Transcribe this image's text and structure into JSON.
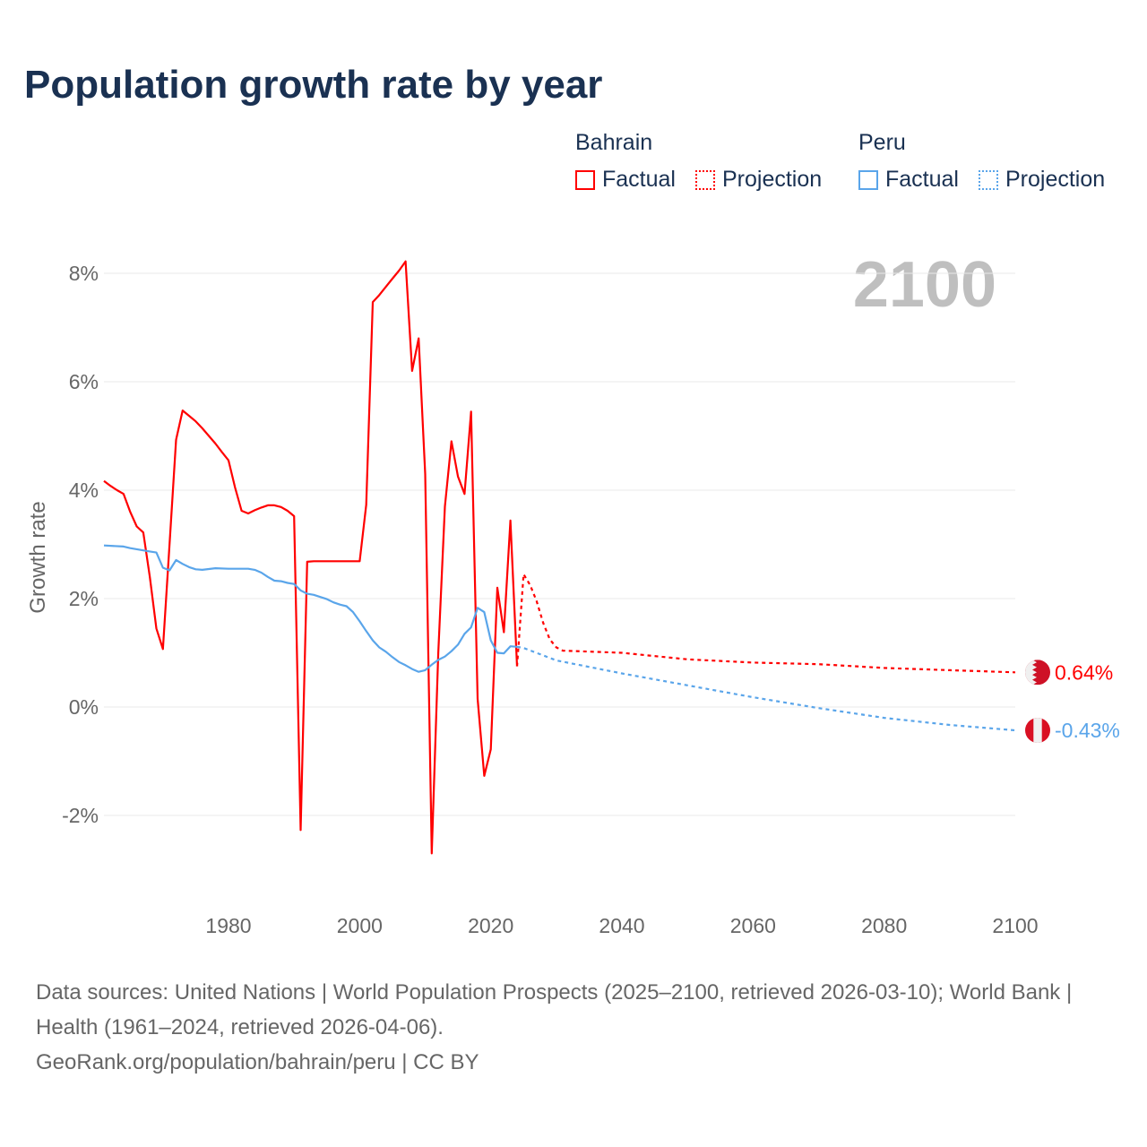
{
  "title": "Population growth rate by year",
  "legend": {
    "groups": [
      {
        "name": "Bahrain",
        "color": "#ff0000",
        "items": [
          "Factual",
          "Projection"
        ]
      },
      {
        "name": "Peru",
        "color": "#5aa5ea",
        "items": [
          "Factual",
          "Projection"
        ]
      }
    ]
  },
  "year_label": "2100",
  "sources": [
    "Data sources: United Nations | World Population Prospects (2025–2100, retrieved 2026-03-10); World Bank | Health (1961–2024, retrieved 2026-04-06).",
    "GeoRank.org/population/bahrain/peru | CC BY"
  ],
  "chart_data": {
    "type": "line",
    "title": "Population growth rate by year",
    "xlabel": "",
    "ylabel": "Growth rate",
    "xlim": [
      1961,
      2100
    ],
    "ylim": [
      -3,
      9
    ],
    "xticks": [
      1980,
      2000,
      2020,
      2040,
      2060,
      2080,
      2100
    ],
    "yticks": [
      -2,
      0,
      2,
      4,
      6,
      8
    ],
    "ytick_labels": [
      "-2%",
      "0%",
      "2%",
      "4%",
      "6%",
      "8%"
    ],
    "grid": true,
    "series": [
      {
        "name": "Bahrain",
        "kind": "Factual",
        "color": "#ff0000",
        "end_label": "0.64%",
        "x": [
          1961,
          1962,
          1963,
          1964,
          1965,
          1966,
          1967,
          1968,
          1969,
          1970,
          1971,
          1972,
          1973,
          1974,
          1975,
          1976,
          1977,
          1978,
          1979,
          1980,
          1981,
          1982,
          1983,
          1984,
          1985,
          1986,
          1987,
          1988,
          1989,
          1990,
          1991,
          1992,
          1993,
          1994,
          1995,
          1996,
          1997,
          1998,
          1999,
          2000,
          2001,
          2002,
          2003,
          2004,
          2005,
          2006,
          2007,
          2008,
          2009,
          2010,
          2011,
          2012,
          2013,
          2014,
          2015,
          2016,
          2017,
          2018,
          2019,
          2020,
          2021,
          2022,
          2023,
          2024
        ],
        "y": [
          4.17,
          4.08,
          4.0,
          3.93,
          3.6,
          3.33,
          3.22,
          2.4,
          1.45,
          1.07,
          3.0,
          4.93,
          5.47,
          5.37,
          5.27,
          5.14,
          5.0,
          4.86,
          4.7,
          4.55,
          4.05,
          3.62,
          3.57,
          3.63,
          3.68,
          3.72,
          3.72,
          3.69,
          3.62,
          3.52,
          -2.27,
          2.68,
          2.69,
          2.69,
          2.69,
          2.69,
          2.69,
          2.69,
          2.69,
          2.69,
          3.73,
          7.47,
          7.6,
          7.75,
          7.9,
          8.05,
          8.22,
          6.2,
          6.8,
          4.3,
          -2.7,
          1.0,
          3.7,
          4.9,
          4.25,
          3.93,
          5.45,
          0.15,
          -1.27,
          -0.78,
          2.2,
          1.38,
          3.44,
          0.75
        ]
      },
      {
        "name": "Bahrain",
        "kind": "Projection",
        "color": "#ff0000",
        "x": [
          2024,
          2025,
          2026,
          2027,
          2028,
          2029,
          2030,
          2031,
          2040,
          2050,
          2060,
          2070,
          2080,
          2090,
          2100
        ],
        "y": [
          0.75,
          2.45,
          2.25,
          1.95,
          1.55,
          1.25,
          1.1,
          1.04,
          1.0,
          0.88,
          0.82,
          0.79,
          0.72,
          0.68,
          0.64
        ]
      },
      {
        "name": "Peru",
        "kind": "Factual",
        "color": "#5aa5ea",
        "end_label": "-0.43%",
        "x": [
          1961,
          1964,
          1965,
          1968,
          1969,
          1970,
          1971,
          1972,
          1973,
          1974,
          1975,
          1976,
          1978,
          1980,
          1983,
          1984,
          1985,
          1986,
          1987,
          1988,
          1989,
          1990,
          1991,
          1992,
          1993,
          1994,
          1995,
          1996,
          1997,
          1998,
          1999,
          2000,
          2001,
          2002,
          2003,
          2004,
          2005,
          2006,
          2007,
          2008,
          2009,
          2010,
          2011,
          2012,
          2013,
          2014,
          2015,
          2016,
          2017,
          2018,
          2019,
          2020,
          2021,
          2022,
          2023,
          2024
        ],
        "y": [
          2.98,
          2.96,
          2.93,
          2.87,
          2.85,
          2.57,
          2.52,
          2.71,
          2.64,
          2.58,
          2.54,
          2.53,
          2.56,
          2.55,
          2.55,
          2.53,
          2.48,
          2.4,
          2.33,
          2.32,
          2.29,
          2.27,
          2.15,
          2.09,
          2.07,
          2.03,
          1.99,
          1.93,
          1.89,
          1.86,
          1.75,
          1.58,
          1.4,
          1.23,
          1.1,
          1.02,
          0.92,
          0.83,
          0.77,
          0.7,
          0.65,
          0.68,
          0.78,
          0.87,
          0.93,
          1.03,
          1.15,
          1.35,
          1.47,
          1.83,
          1.75,
          1.23,
          1.0,
          0.99,
          1.12,
          1.11
        ]
      },
      {
        "name": "Peru",
        "kind": "Projection",
        "color": "#5aa5ea",
        "x": [
          2024,
          2025,
          2030,
          2040,
          2050,
          2060,
          2070,
          2080,
          2090,
          2100
        ],
        "y": [
          1.11,
          1.09,
          0.86,
          0.62,
          0.4,
          0.18,
          -0.02,
          -0.2,
          -0.33,
          -0.43
        ]
      }
    ]
  }
}
